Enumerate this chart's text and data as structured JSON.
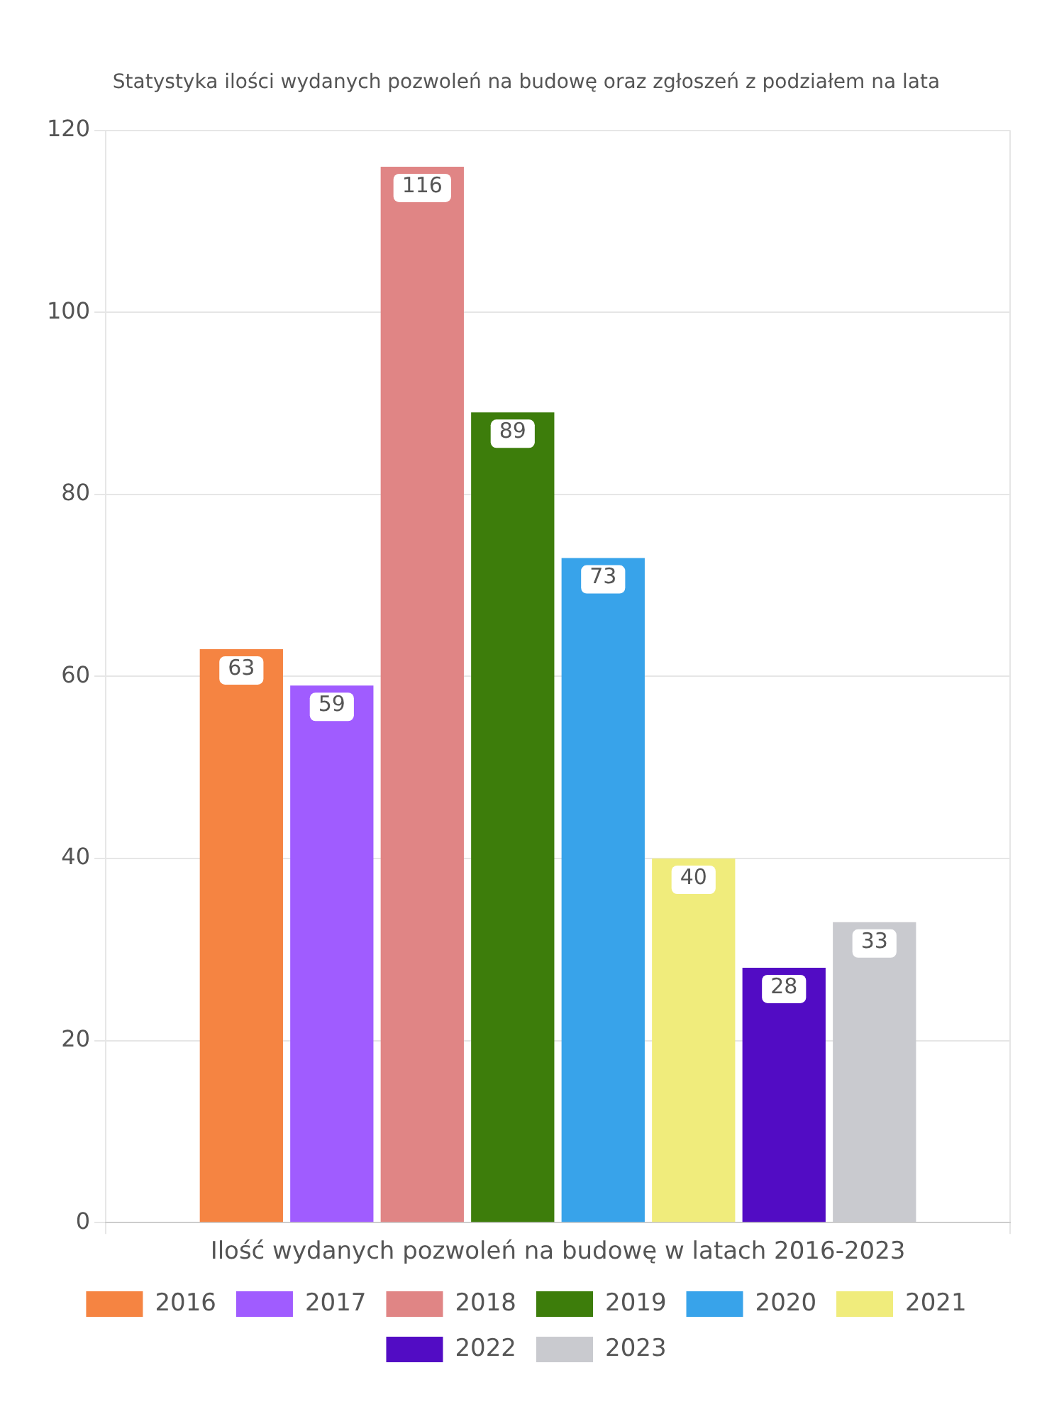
{
  "chart_data": {
    "type": "bar",
    "title": "Statystyka ilości wydanych pozwoleń na budowę oraz zgłoszeń z podziałem na lata",
    "categories": [
      "Ilość wydanych pozwoleń na budowę w latach 2016-2023"
    ],
    "series": [
      {
        "name": "2016",
        "color": "#f58442",
        "values": [
          63
        ]
      },
      {
        "name": "2017",
        "color": "#a05cff",
        "values": [
          59
        ]
      },
      {
        "name": "2018",
        "color": "#e08585",
        "values": [
          116
        ]
      },
      {
        "name": "2019",
        "color": "#3d7d0b",
        "values": [
          89
        ]
      },
      {
        "name": "2020",
        "color": "#38a3ea",
        "values": [
          73
        ]
      },
      {
        "name": "2021",
        "color": "#f0ec7c",
        "values": [
          40
        ]
      },
      {
        "name": "2022",
        "color": "#520cc4",
        "values": [
          28
        ]
      },
      {
        "name": "2023",
        "color": "#c9cacf",
        "values": [
          33
        ]
      }
    ],
    "ylim": [
      0,
      120
    ],
    "yticks": [
      0,
      20,
      40,
      60,
      80,
      100,
      120
    ],
    "grid": true,
    "legend": "bottom",
    "data_labels": true
  }
}
